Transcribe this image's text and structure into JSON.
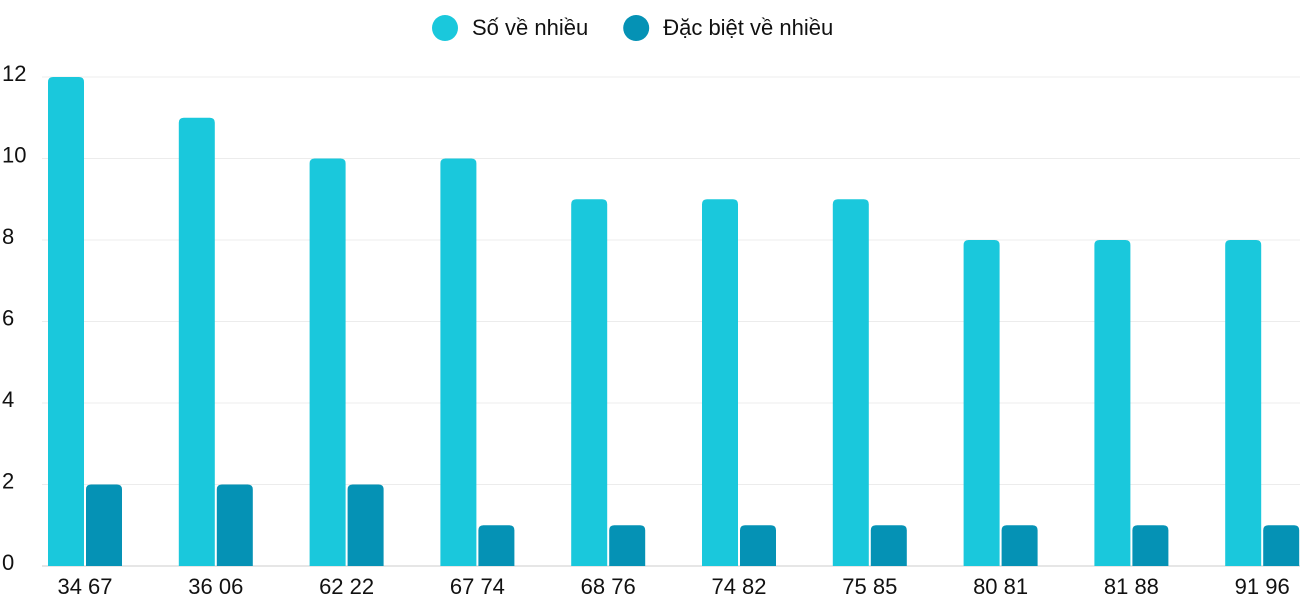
{
  "chart_data": {
    "type": "bar",
    "categories": [
      "34 67",
      "36 06",
      "62 22",
      "67 74",
      "68 76",
      "74 82",
      "75 85",
      "80 81",
      "81 88",
      "91 96"
    ],
    "series": [
      {
        "name": "Số về nhiều",
        "color": "#1ac8dc",
        "values": [
          12,
          11,
          10,
          10,
          9,
          9,
          9,
          8,
          8,
          8
        ]
      },
      {
        "name": "Đặc biệt về nhiều",
        "color": "#0592b5",
        "values": [
          2,
          2,
          2,
          1,
          1,
          1,
          1,
          1,
          1,
          1
        ]
      }
    ],
    "ylim": [
      0,
      12
    ],
    "yticks": [
      0,
      2,
      4,
      6,
      8,
      10,
      12
    ],
    "grid": true,
    "legend": "top"
  }
}
